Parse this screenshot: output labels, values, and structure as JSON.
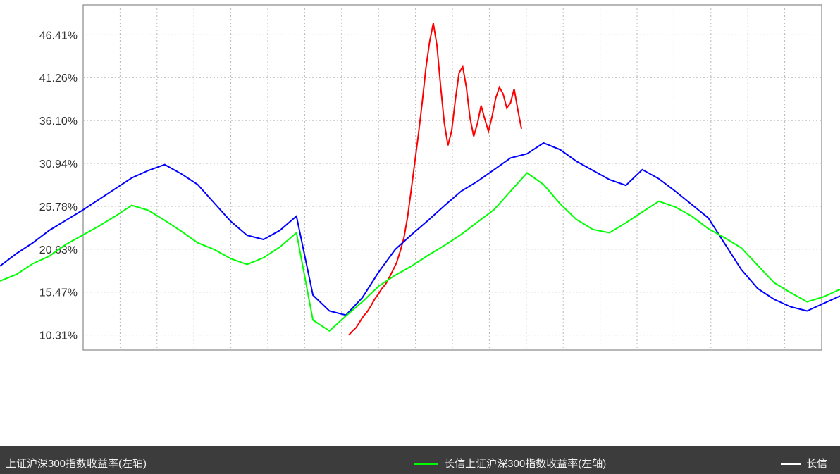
{
  "chart_data": {
    "type": "line",
    "title": "",
    "xlabel": "",
    "ylabel": "",
    "ylim": [
      8.5,
      50
    ],
    "y_tick_labels": [
      "46.41%",
      "41.26%",
      "36.10%",
      "30.94%",
      "25.78%",
      "20.63%",
      "15.47%",
      "10.31%"
    ],
    "y_tick_values": [
      46.41,
      41.26,
      36.1,
      30.94,
      25.78,
      20.63,
      15.47,
      10.31
    ],
    "grid": true,
    "series": [
      {
        "color": "#ff0000",
        "values": [
          10.3,
          10.8,
          11.2,
          11.9,
          12.6,
          13.1,
          13.8,
          14.6,
          15.2,
          15.9,
          16.4,
          17.2,
          18.1,
          19.0,
          20.4,
          22.0,
          24.5,
          27.8,
          31.2,
          34.6,
          38.4,
          42.5,
          45.6,
          47.8,
          45.1,
          40.2,
          35.8,
          33.1,
          34.9,
          38.6,
          41.8,
          42.6,
          40.1,
          36.4,
          34.2,
          35.7,
          37.9,
          36.3,
          34.8,
          36.6,
          38.8,
          40.1,
          39.3,
          37.6,
          38.2,
          39.9,
          37.4,
          35.1
        ]
      },
      {
        "color": "#0000ff",
        "values": [
          18.6,
          20.1,
          21.4,
          22.9,
          24.1,
          25.3,
          26.6,
          27.9,
          29.2,
          30.1,
          30.8,
          29.7,
          28.4,
          26.2,
          24.0,
          22.3,
          21.8,
          22.9,
          24.6,
          15.1,
          13.2,
          12.7,
          14.8,
          17.9,
          20.6,
          22.4,
          24.1,
          25.9,
          27.6,
          28.8,
          30.2,
          31.6,
          32.1,
          33.4,
          32.6,
          31.2,
          30.1,
          29.0,
          28.3,
          30.2,
          29.1,
          27.6,
          26.0,
          24.4,
          21.3,
          18.2,
          15.9,
          14.6,
          13.7,
          13.2,
          14.1,
          15.0
        ]
      },
      {
        "color": "#00ff00",
        "values": [
          16.8,
          17.6,
          18.9,
          19.8,
          21.2,
          22.3,
          23.4,
          24.6,
          25.9,
          25.3,
          24.1,
          22.8,
          21.4,
          20.6,
          19.5,
          18.8,
          19.6,
          20.9,
          22.6,
          12.1,
          10.8,
          12.6,
          14.3,
          16.2,
          17.5,
          18.6,
          19.9,
          21.1,
          22.4,
          23.9,
          25.4,
          27.6,
          29.8,
          28.4,
          26.1,
          24.2,
          23.0,
          22.6,
          23.8,
          25.1,
          26.4,
          25.7,
          24.6,
          23.1,
          22.0,
          20.8,
          18.7,
          16.6,
          15.4,
          14.3,
          14.9,
          15.8
        ]
      }
    ],
    "legend": {
      "position": "bottom",
      "entries": [
        "上证沪深300指数收益率(左轴)",
        "长信上证沪深300指数收益率(左轴)",
        "长信"
      ]
    }
  }
}
